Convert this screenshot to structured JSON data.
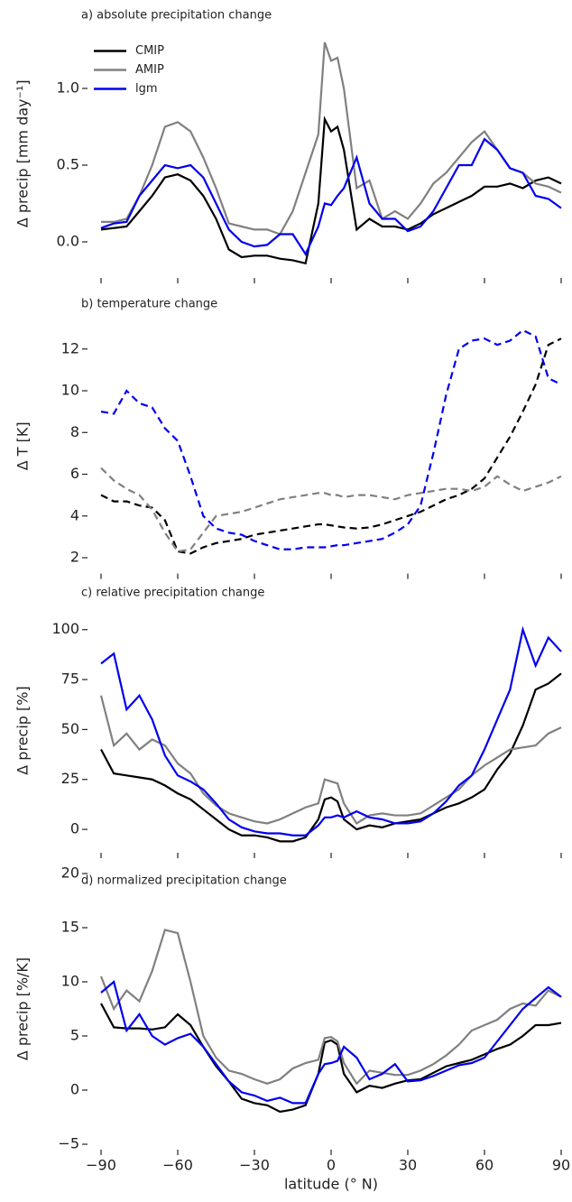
{
  "chart_data": [
    {
      "type": "line",
      "title": "a) absolute precipitation change",
      "ylabel": "Δ precip [mm day⁻¹]",
      "x": [
        -90,
        -85,
        -80,
        -75,
        -70,
        -65,
        -60,
        -55,
        -50,
        -45,
        -40,
        -35,
        -30,
        -25,
        -20,
        -15,
        -10,
        -5,
        -2.5,
        0,
        2.5,
        5,
        10,
        15,
        20,
        25,
        30,
        35,
        40,
        45,
        50,
        55,
        60,
        65,
        70,
        75,
        80,
        85,
        90
      ],
      "xlim": [
        -90,
        90
      ],
      "xticks": [
        -90,
        -60,
        -30,
        0,
        30,
        60,
        90
      ],
      "ylim": [
        -0.2,
        1.35
      ],
      "yticks": [
        {
          "value": 0,
          "label": "0.0"
        },
        {
          "value": 0.5,
          "label": "0.5"
        },
        {
          "value": 1,
          "label": "1.0"
        }
      ],
      "legend": "upper left",
      "linestyle": "solid",
      "series": [
        {
          "name": "CMIP",
          "color": "#000000",
          "values": [
            0.08,
            0.09,
            0.1,
            0.2,
            0.3,
            0.42,
            0.44,
            0.4,
            0.3,
            0.15,
            -0.05,
            -0.1,
            -0.09,
            -0.09,
            -0.11,
            -0.12,
            -0.14,
            0.25,
            0.8,
            0.72,
            0.75,
            0.6,
            0.08,
            0.15,
            0.1,
            0.1,
            0.08,
            0.12,
            0.18,
            0.22,
            0.26,
            0.3,
            0.36,
            0.36,
            0.38,
            0.35,
            0.4,
            0.42,
            0.38
          ]
        },
        {
          "name": "AMIP",
          "color": "#808080",
          "values": [
            0.13,
            0.13,
            0.15,
            0.3,
            0.5,
            0.75,
            0.78,
            0.72,
            0.55,
            0.35,
            0.12,
            0.1,
            0.08,
            0.08,
            0.05,
            0.2,
            0.45,
            0.7,
            1.3,
            1.18,
            1.2,
            1.0,
            0.35,
            0.4,
            0.15,
            0.2,
            0.15,
            0.25,
            0.38,
            0.45,
            0.55,
            0.65,
            0.72,
            0.6,
            0.48,
            0.45,
            0.38,
            0.36,
            0.32
          ]
        },
        {
          "name": "lgm",
          "color": "#0000ee",
          "values": [
            0.09,
            0.12,
            0.13,
            0.3,
            0.4,
            0.5,
            0.48,
            0.5,
            0.42,
            0.25,
            0.08,
            0.0,
            -0.03,
            -0.02,
            0.05,
            0.05,
            -0.08,
            0.1,
            0.25,
            0.24,
            0.3,
            0.35,
            0.55,
            0.25,
            0.15,
            0.15,
            0.07,
            0.1,
            0.2,
            0.35,
            0.5,
            0.5,
            0.67,
            0.6,
            0.48,
            0.45,
            0.3,
            0.28,
            0.22
          ]
        }
      ]
    },
    {
      "type": "line",
      "title": "b) temperature change",
      "ylabel": "Δ T [K]",
      "x": [
        -90,
        -85,
        -80,
        -75,
        -70,
        -65,
        -60,
        -55,
        -50,
        -45,
        -40,
        -35,
        -30,
        -25,
        -20,
        -15,
        -10,
        -5,
        -2.5,
        0,
        2.5,
        5,
        10,
        15,
        20,
        25,
        30,
        35,
        40,
        45,
        50,
        55,
        60,
        65,
        70,
        75,
        80,
        85,
        90
      ],
      "xlim": [
        -90,
        90
      ],
      "xticks": [
        -90,
        -60,
        -30,
        0,
        30,
        60,
        90
      ],
      "ylim": [
        1.5,
        13.2
      ],
      "yticks": [
        2,
        4,
        6,
        8,
        10,
        12
      ],
      "linestyle": "dashed",
      "series": [
        {
          "color": "#000000",
          "values": [
            5.0,
            4.7,
            4.7,
            4.5,
            4.4,
            3.8,
            2.3,
            2.2,
            2.5,
            2.7,
            2.8,
            2.9,
            3.1,
            3.2,
            3.3,
            3.4,
            3.5,
            3.6,
            3.6,
            3.55,
            3.5,
            3.45,
            3.4,
            3.45,
            3.6,
            3.8,
            4.0,
            4.2,
            4.5,
            4.8,
            5.0,
            5.3,
            5.8,
            6.8,
            7.8,
            9.0,
            10.3,
            12.2,
            12.5
          ]
        },
        {
          "color": "#808080",
          "values": [
            6.3,
            5.7,
            5.3,
            5.0,
            4.3,
            3.2,
            2.3,
            2.4,
            3.2,
            4.0,
            4.1,
            4.2,
            4.4,
            4.6,
            4.8,
            4.9,
            5.0,
            5.1,
            5.1,
            5.0,
            5.0,
            4.9,
            5.0,
            5.0,
            4.9,
            4.8,
            5.0,
            5.1,
            5.2,
            5.3,
            5.3,
            5.2,
            5.4,
            5.9,
            5.5,
            5.2,
            5.4,
            5.6,
            5.9
          ]
        },
        {
          "color": "#0000ee",
          "values": [
            9.0,
            8.9,
            10.0,
            9.4,
            9.2,
            8.2,
            7.6,
            5.9,
            4.0,
            3.4,
            3.2,
            3.1,
            2.8,
            2.6,
            2.4,
            2.4,
            2.5,
            2.5,
            2.5,
            2.55,
            2.6,
            2.6,
            2.7,
            2.8,
            2.9,
            3.2,
            3.6,
            4.5,
            7.0,
            9.8,
            12.0,
            12.4,
            12.5,
            12.2,
            12.4,
            12.9,
            12.6,
            10.6,
            10.3
          ]
        }
      ]
    },
    {
      "type": "line",
      "title": "c) relative precipitation change",
      "ylabel": "Δ precip [%]",
      "x": [
        -90,
        -85,
        -80,
        -75,
        -70,
        -65,
        -60,
        -55,
        -50,
        -45,
        -40,
        -35,
        -30,
        -25,
        -20,
        -15,
        -10,
        -5,
        -2.5,
        0,
        2.5,
        5,
        10,
        15,
        20,
        25,
        30,
        35,
        40,
        45,
        50,
        55,
        60,
        65,
        70,
        75,
        80,
        85,
        90
      ],
      "xlim": [
        -90,
        90
      ],
      "xticks": [
        -90,
        -60,
        -30,
        0,
        30,
        60,
        90
      ],
      "ylim": [
        -9,
        108
      ],
      "yticks": [
        0,
        25,
        50,
        75,
        100
      ],
      "linestyle": "solid",
      "series": [
        {
          "color": "#000000",
          "values": [
            40,
            28,
            27,
            26,
            25,
            22,
            18,
            15,
            10,
            5,
            0,
            -3,
            -3,
            -4,
            -6,
            -6,
            -4,
            5,
            15,
            16,
            14,
            5,
            0,
            2,
            1,
            3,
            4,
            5,
            8,
            11,
            13,
            16,
            20,
            30,
            38,
            52,
            70,
            73,
            78
          ]
        },
        {
          "color": "#808080",
          "values": [
            67,
            42,
            48,
            40,
            45,
            42,
            33,
            28,
            18,
            12,
            8,
            6,
            4,
            3,
            5,
            8,
            11,
            13,
            25,
            24,
            23,
            13,
            3,
            7,
            8,
            7,
            7,
            8,
            12,
            16,
            20,
            27,
            32,
            36,
            40,
            41,
            42,
            48,
            51
          ]
        },
        {
          "color": "#0000ee",
          "values": [
            83,
            88,
            60,
            67,
            55,
            37,
            27,
            24,
            20,
            13,
            5,
            1,
            -1,
            -2,
            -2,
            -3,
            -3,
            2,
            6,
            6,
            7,
            6,
            9,
            6,
            5,
            3,
            3,
            4,
            8,
            14,
            22,
            27,
            40,
            55,
            70,
            100,
            82,
            96,
            89
          ]
        }
      ]
    },
    {
      "type": "line",
      "title": "d) normalized precipitation change",
      "ylabel": "Δ precip [%/K]",
      "xlabel": "latitude (° N)",
      "x": [
        -90,
        -85,
        -80,
        -75,
        -70,
        -65,
        -60,
        -55,
        -50,
        -45,
        -40,
        -35,
        -30,
        -25,
        -20,
        -15,
        -10,
        -5,
        -2.5,
        0,
        2.5,
        5,
        10,
        15,
        20,
        25,
        30,
        35,
        40,
        45,
        50,
        55,
        60,
        65,
        70,
        75,
        80,
        85,
        90
      ],
      "xlim": [
        -90,
        90
      ],
      "xticks": [
        {
          "value": -90,
          "label": "−90"
        },
        {
          "value": -60,
          "label": "−60"
        },
        {
          "value": -30,
          "label": "−30"
        },
        0,
        30,
        60,
        90
      ],
      "ylim": [
        -5,
        20
      ],
      "yticks": [
        {
          "value": -5,
          "label": "−5"
        },
        0,
        5,
        10,
        15,
        20
      ],
      "linestyle": "solid",
      "series": [
        {
          "color": "#000000",
          "values": [
            8,
            5.8,
            5.7,
            5.7,
            5.6,
            5.8,
            7.0,
            6.0,
            4.0,
            2.2,
            0.8,
            -0.8,
            -1.2,
            -1.4,
            -2.0,
            -1.8,
            -1.4,
            1.5,
            4.4,
            4.6,
            4.2,
            1.5,
            -0.2,
            0.4,
            0.2,
            0.6,
            0.9,
            1.0,
            1.6,
            2.2,
            2.5,
            2.8,
            3.3,
            3.8,
            4.2,
            5.0,
            6.0,
            6.0,
            6.2
          ]
        },
        {
          "color": "#808080",
          "values": [
            10.5,
            7.5,
            9.2,
            8.2,
            11.0,
            14.8,
            14.5,
            10.0,
            5.0,
            3.0,
            1.8,
            1.5,
            1.0,
            0.6,
            1.0,
            2.0,
            2.5,
            2.8,
            4.8,
            4.9,
            4.5,
            2.5,
            0.6,
            1.8,
            1.6,
            1.4,
            1.4,
            1.8,
            2.4,
            3.2,
            4.2,
            5.5,
            6.0,
            6.5,
            7.5,
            8.0,
            7.8,
            9.2,
            8.6
          ]
        },
        {
          "color": "#0000ee",
          "values": [
            9,
            10,
            5.5,
            7.0,
            5.0,
            4.2,
            4.8,
            5.2,
            4.0,
            2.4,
            0.8,
            -0.2,
            -0.5,
            -1.0,
            -0.7,
            -1.2,
            -1.2,
            1.5,
            2.4,
            2.5,
            2.7,
            4.0,
            3.0,
            1.0,
            1.5,
            2.4,
            0.8,
            0.9,
            1.3,
            1.8,
            2.3,
            2.5,
            3.0,
            4.5,
            6.0,
            7.5,
            8.5,
            9.5,
            8.6
          ]
        }
      ]
    }
  ]
}
